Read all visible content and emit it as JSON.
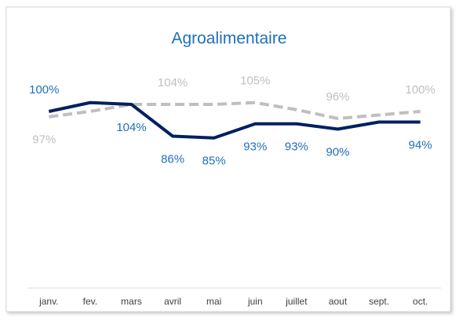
{
  "chart_data": {
    "type": "line",
    "title": "Agroalimentaire",
    "categories": [
      "janv.",
      "fev.",
      "mars",
      "avril",
      "mai",
      "juin",
      "juillet",
      "aout",
      "sept.",
      "oct."
    ],
    "series": [
      {
        "color": "#002060",
        "label_color": "#1f70b8",
        "dashed": false,
        "values": [
          100,
          105,
          104,
          86,
          85,
          93,
          93,
          90,
          94,
          94
        ],
        "value_labels": [
          "100%",
          null,
          "104%",
          "86%",
          "85%",
          "93%",
          "93%",
          "90%",
          null,
          "94%"
        ]
      },
      {
        "color": "#bfbfbf",
        "label_color": "#bfbfbf",
        "dashed": true,
        "values": [
          97,
          100,
          104,
          104,
          104,
          105,
          101,
          96,
          98,
          100
        ],
        "value_labels": [
          "97%",
          null,
          null,
          "104%",
          null,
          "105%",
          null,
          "96%",
          null,
          "100%"
        ]
      }
    ],
    "ylim": [
      0,
      120
    ]
  }
}
